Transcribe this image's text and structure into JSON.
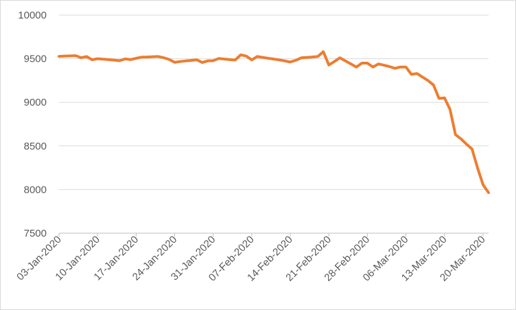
{
  "chart_data": {
    "type": "line",
    "title": "",
    "xlabel": "",
    "ylabel": "",
    "ylim": [
      7500,
      10000
    ],
    "yticks": [
      7500,
      8000,
      8500,
      9000,
      9500,
      10000
    ],
    "xlim": [
      "03-Jan-2020",
      "21-Mar-2020"
    ],
    "xticks": [
      "03-Jan-2020",
      "10-Jan-2020",
      "17-Jan-2020",
      "24-Jan-2020",
      "31-Jan-2020",
      "07-Feb-2020",
      "14-Feb-2020",
      "21-Feb-2020",
      "28-Feb-2020",
      "06-Mar-2020",
      "13-Mar-2020",
      "20-Mar-2020"
    ],
    "grid": "horizontal",
    "legend": "none",
    "line_color": "#ED7D31",
    "grid_color": "#D9D9D9",
    "series": [
      {
        "x": [
          "2020-01-03",
          "2020-01-04",
          "2020-01-05",
          "2020-01-06",
          "2020-01-07",
          "2020-01-08",
          "2020-01-09",
          "2020-01-10",
          "2020-01-11",
          "2020-01-12",
          "2020-01-13",
          "2020-01-14",
          "2020-01-15",
          "2020-01-16",
          "2020-01-17",
          "2020-01-18",
          "2020-01-19",
          "2020-01-20",
          "2020-01-21",
          "2020-01-22",
          "2020-01-23",
          "2020-01-24",
          "2020-01-25",
          "2020-01-26",
          "2020-01-27",
          "2020-01-28",
          "2020-01-29",
          "2020-01-30",
          "2020-01-31",
          "2020-02-01",
          "2020-02-02",
          "2020-02-03",
          "2020-02-04",
          "2020-02-05",
          "2020-02-06",
          "2020-02-07",
          "2020-02-08",
          "2020-02-09",
          "2020-02-10",
          "2020-02-11",
          "2020-02-12",
          "2020-02-13",
          "2020-02-14",
          "2020-02-15",
          "2020-02-16",
          "2020-02-17",
          "2020-02-18",
          "2020-02-19",
          "2020-02-20",
          "2020-02-21",
          "2020-02-22",
          "2020-02-23",
          "2020-02-24",
          "2020-02-25",
          "2020-02-26",
          "2020-02-27",
          "2020-02-28",
          "2020-02-29",
          "2020-03-01",
          "2020-03-02",
          "2020-03-03",
          "2020-03-04",
          "2020-03-05",
          "2020-03-06",
          "2020-03-07",
          "2020-03-08",
          "2020-03-09",
          "2020-03-10",
          "2020-03-11",
          "2020-03-12",
          "2020-03-13",
          "2020-03-14",
          "2020-03-15",
          "2020-03-16",
          "2020-03-17",
          "2020-03-18",
          "2020-03-19",
          "2020-03-20",
          "2020-03-21"
        ],
        "values": [
          9527,
          9530,
          9532,
          9535,
          9512,
          9525,
          9488,
          9500,
          9495,
          9490,
          9484,
          9477,
          9498,
          9490,
          9505,
          9518,
          9520,
          9523,
          9525,
          9512,
          9492,
          9458,
          9468,
          9475,
          9480,
          9488,
          9457,
          9475,
          9477,
          9502,
          9496,
          9490,
          9485,
          9545,
          9530,
          9487,
          9525,
          9515,
          9505,
          9496,
          9487,
          9475,
          9462,
          9482,
          9510,
          9515,
          9520,
          9525,
          9580,
          9428,
          9468,
          9510,
          9475,
          9440,
          9405,
          9450,
          9450,
          9405,
          9440,
          9425,
          9410,
          9390,
          9405,
          9405,
          9320,
          9330,
          9290,
          9250,
          9200,
          9045,
          9050,
          8920,
          8630,
          8580,
          8520,
          8465,
          8250,
          8055,
          7965
        ]
      }
    ]
  }
}
